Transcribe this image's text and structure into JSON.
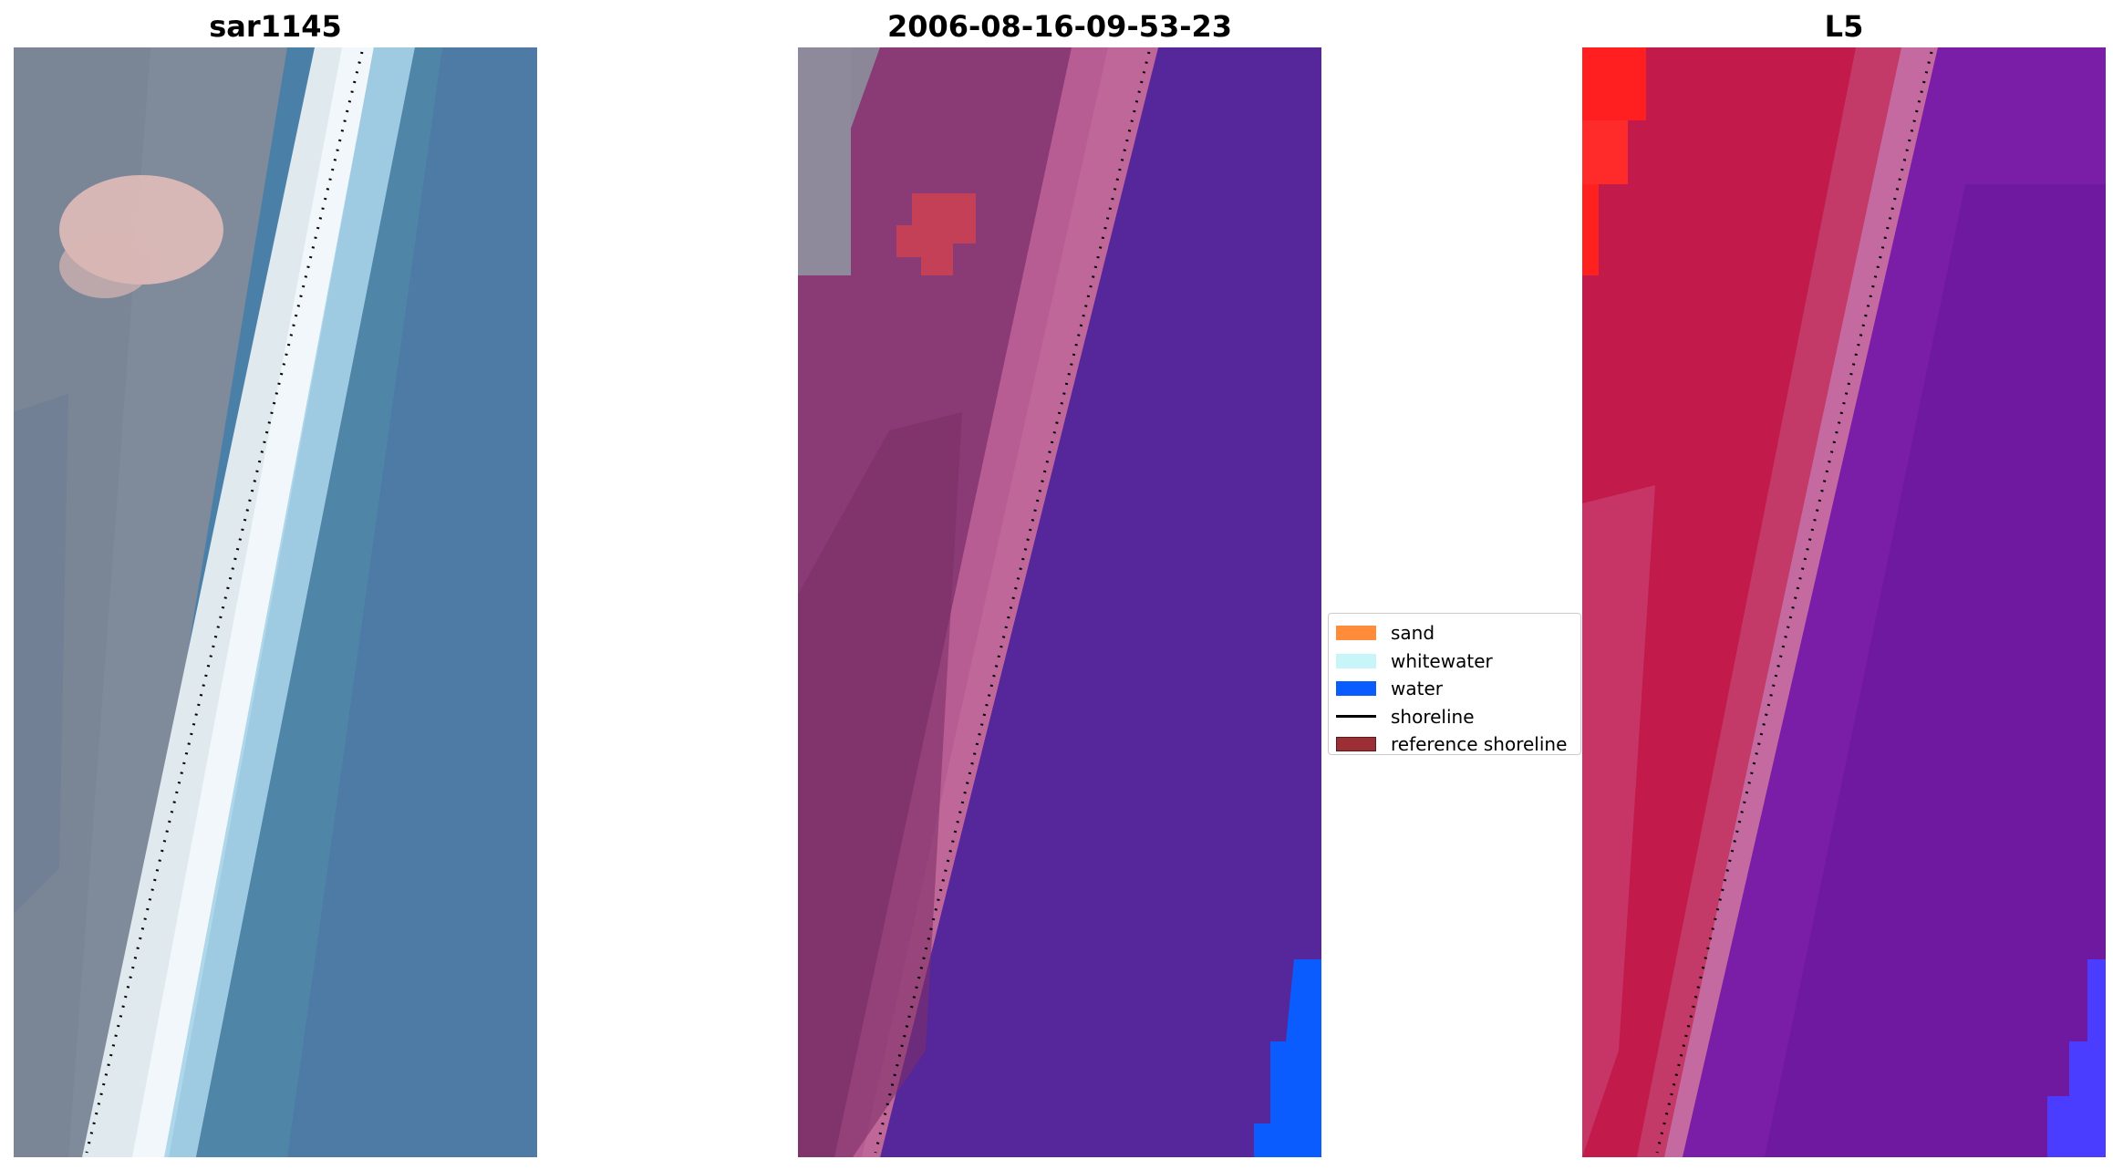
{
  "panels": [
    {
      "title": "sar1145",
      "image": "rgb-composite"
    },
    {
      "title": "2006-08-16-09-53-23",
      "image": "classified-overlay"
    },
    {
      "title": "L5",
      "image": "false-color-composite"
    }
  ],
  "legend": {
    "items": [
      {
        "label": "sand",
        "color": "#ff8c3a",
        "kind": "patch"
      },
      {
        "label": "whitewater",
        "color": "#c8f5f8",
        "kind": "patch"
      },
      {
        "label": "water",
        "color": "#0a5cff",
        "kind": "patch"
      },
      {
        "label": "shoreline",
        "color": "#000000",
        "kind": "line"
      },
      {
        "label": "reference shoreline",
        "color": "#9a2f35",
        "kind": "patch"
      }
    ]
  }
}
